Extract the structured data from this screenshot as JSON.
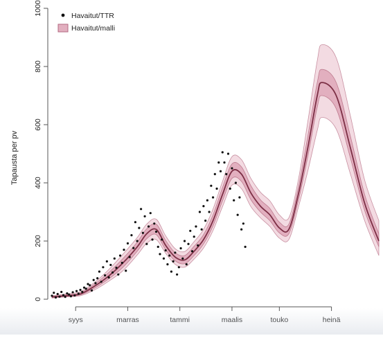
{
  "chart_data": {
    "type": "line",
    "title": "",
    "xlabel": "",
    "ylabel": "Tapausta per pv",
    "x_tick_labels": [
      "syys",
      "marras",
      "tammi",
      "maalis",
      "touko",
      "heinä"
    ],
    "y_ticks": [
      0,
      200,
      400,
      600,
      800,
      1000
    ],
    "xlim": [
      0,
      345
    ],
    "ylim": [
      0,
      1000
    ],
    "legend": {
      "placement": "top-left",
      "entries": [
        "Havaitut/TTR",
        "Havaitut/malli"
      ]
    },
    "colors": {
      "band_outer": "#f3dbe2",
      "band_inner": "#e2afbf",
      "band_edge": "#b36a80",
      "median_line": "#7c2f45",
      "points": "#111111",
      "axis": "#555555"
    },
    "series": [
      {
        "name": "Havaitut/malli",
        "x": [
          0,
          15,
          30,
          45,
          60,
          75,
          90,
          100,
          110,
          120,
          130,
          140,
          150,
          160,
          170,
          180,
          190,
          200,
          210,
          220,
          230,
          240,
          250,
          260,
          270,
          280,
          285,
          300,
          315,
          330,
          345
        ],
        "median": [
          8,
          12,
          18,
          45,
          80,
          125,
          180,
          225,
          240,
          185,
          145,
          135,
          165,
          205,
          270,
          360,
          440,
          430,
          365,
          320,
          290,
          245,
          240,
          360,
          520,
          700,
          745,
          700,
          520,
          330,
          200
        ],
        "lower_80": [
          6,
          10,
          15,
          38,
          70,
          110,
          165,
          208,
          222,
          170,
          132,
          122,
          150,
          190,
          252,
          338,
          415,
          405,
          342,
          300,
          270,
          228,
          225,
          338,
          490,
          660,
          700,
          655,
          485,
          305,
          180
        ],
        "upper_80": [
          10,
          15,
          22,
          52,
          92,
          140,
          196,
          242,
          258,
          202,
          160,
          150,
          182,
          222,
          290,
          384,
          465,
          455,
          390,
          342,
          312,
          265,
          258,
          385,
          560,
          745,
          790,
          745,
          560,
          360,
          225
        ],
        "lower_95": [
          4,
          8,
          12,
          32,
          62,
          98,
          152,
          192,
          205,
          158,
          120,
          110,
          138,
          176,
          236,
          318,
          392,
          380,
          318,
          280,
          250,
          210,
          205,
          315,
          440,
          580,
          625,
          585,
          430,
          270,
          150
        ],
        "upper_95": [
          12,
          18,
          26,
          58,
          102,
          155,
          212,
          258,
          275,
          218,
          174,
          164,
          198,
          240,
          310,
          405,
          490,
          480,
          415,
          368,
          338,
          290,
          280,
          410,
          610,
          820,
          875,
          830,
          630,
          410,
          270
        ]
      },
      {
        "name": "Havaitut/TTR",
        "x": [
          0,
          2,
          4,
          6,
          8,
          10,
          12,
          14,
          16,
          18,
          20,
          22,
          24,
          26,
          28,
          30,
          32,
          34,
          36,
          38,
          40,
          42,
          44,
          46,
          48,
          50,
          52,
          54,
          56,
          58,
          60,
          62,
          64,
          66,
          68,
          70,
          72,
          74,
          76,
          78,
          80,
          82,
          84,
          86,
          88,
          90,
          92,
          94,
          96,
          98,
          100,
          102,
          104,
          106,
          108,
          110,
          112,
          114,
          116,
          118,
          120,
          122,
          124,
          126,
          128,
          130,
          132,
          134,
          136,
          138,
          140,
          142,
          144,
          146,
          148,
          150,
          152,
          154,
          156,
          158,
          160,
          162,
          164,
          166,
          168,
          170,
          172,
          174,
          176,
          178,
          180,
          182,
          184,
          186,
          188,
          190,
          192,
          194,
          196,
          198,
          200,
          202,
          204
        ],
        "y": [
          12,
          22,
          6,
          18,
          9,
          25,
          14,
          8,
          20,
          16,
          10,
          24,
          13,
          28,
          19,
          32,
          25,
          40,
          36,
          52,
          48,
          30,
          66,
          55,
          72,
          95,
          60,
          110,
          82,
          130,
          75,
          118,
          92,
          140,
          108,
          85,
          150,
          125,
          170,
          98,
          192,
          145,
          220,
          176,
          265,
          200,
          245,
          310,
          228,
          285,
          190,
          250,
          296,
          205,
          260,
          232,
          180,
          155,
          205,
          140,
          168,
          120,
          150,
          95,
          130,
          160,
          85,
          110,
          175,
          140,
          200,
          120,
          190,
          235,
          165,
          215,
          250,
          185,
          300,
          240,
          320,
          270,
          340,
          300,
          390,
          350,
          430,
          380,
          470,
          440,
          505,
          470,
          430,
          500,
          380,
          450,
          340,
          400,
          290,
          350,
          240,
          260,
          180
        ]
      }
    ]
  }
}
